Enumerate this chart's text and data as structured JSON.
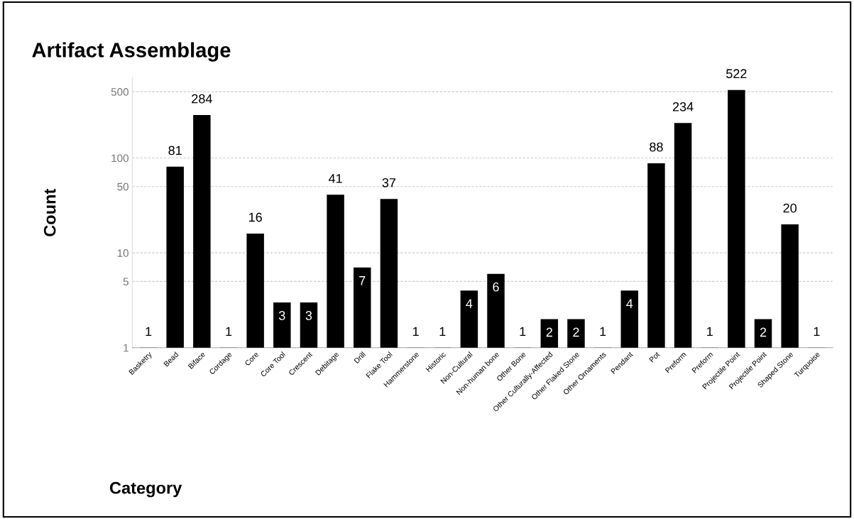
{
  "chart_data": {
    "type": "bar",
    "title": "Artifact Assemblage",
    "xlabel": "Category",
    "ylabel": "Count",
    "categories": [
      "Basketry",
      "Bead",
      "Biface",
      "Cordage",
      "Core",
      "Core Tool",
      "Crescent",
      "Debitage",
      "Drill",
      "Flake Tool",
      "Hammerstone",
      "Historic",
      "Non-Cultural",
      "Non-human bone",
      "Other Bone",
      "Other Culturally-Affected",
      "Other Flaked Stone",
      "Other Ornaments",
      "Pendant",
      "Pot",
      "Preform",
      "Preform",
      "Projectile Point",
      "Projectile Point",
      "Shaped Stone",
      "Turquoise"
    ],
    "values": [
      1,
      81,
      284,
      1,
      16,
      3,
      3,
      41,
      7,
      37,
      1,
      1,
      4,
      6,
      1,
      2,
      2,
      1,
      4,
      88,
      234,
      1,
      522,
      2,
      20,
      1
    ],
    "color": "#000000",
    "log": true,
    "ylim": [
      1,
      700
    ],
    "yticks": [
      1,
      5,
      10,
      50,
      100,
      500
    ],
    "grid": "y",
    "data_labels": true
  }
}
